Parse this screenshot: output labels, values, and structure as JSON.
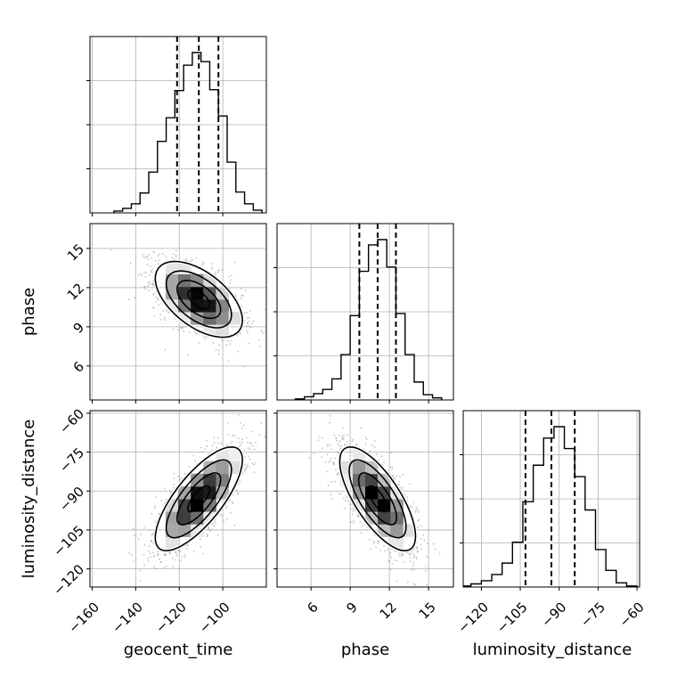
{
  "chart_data": {
    "type": "corner",
    "variables": [
      "geocent_time",
      "phase",
      "luminosity_distance"
    ],
    "axis_labels": {
      "geocent_time": "geocent_time",
      "phase": "phase",
      "luminosity_distance": "luminosity_distance"
    },
    "ranges": {
      "geocent_time": [
        -161,
        -80
      ],
      "phase": [
        3.4,
        16.9
      ],
      "luminosity_distance": [
        -127,
        -59
      ]
    },
    "tick_labels": {
      "geocent_time": [
        "−160",
        "−140",
        "−120",
        "−100"
      ],
      "phase": [
        "6",
        "9",
        "12",
        "15"
      ],
      "luminosity_distance": [
        "−120",
        "−105",
        "−90",
        "−75",
        "−60"
      ]
    },
    "tick_values": {
      "geocent_time": [
        -160,
        -140,
        -120,
        -100
      ],
      "phase": [
        6,
        9,
        12,
        15
      ],
      "luminosity_distance": [
        -120,
        -105,
        -90,
        -75,
        -60
      ]
    },
    "quantiles": {
      "geocent_time": [
        -121,
        -111,
        -102
      ],
      "phase": [
        9.7,
        11.1,
        12.5
      ],
      "luminosity_distance": [
        -103,
        -93,
        -84
      ]
    },
    "histograms": [
      {
        "name": "geocent_time",
        "edges": [
          -150,
          -146,
          -142,
          -138,
          -134,
          -130,
          -126,
          -122,
          -118,
          -114,
          -110,
          -106,
          -102,
          -98,
          -94,
          -90,
          -86,
          -82
        ],
        "counts": [
          2,
          5,
          10,
          22,
          45,
          79,
          105,
          135,
          163,
          177,
          167,
          136,
          107,
          56,
          23,
          10,
          3
        ]
      },
      {
        "name": "phase",
        "edges": [
          4.8,
          5.5,
          6.2,
          6.9,
          7.6,
          8.3,
          9.0,
          9.7,
          10.4,
          11.1,
          11.8,
          12.5,
          13.2,
          13.9,
          14.6,
          15.3,
          16.0
        ],
        "counts": [
          1,
          3,
          6,
          10,
          20,
          43,
          80,
          122,
          147,
          152,
          126,
          82,
          43,
          17,
          5,
          2
        ]
      },
      {
        "name": "luminosity_distance",
        "edges": [
          -128,
          -124,
          -120,
          -116,
          -112,
          -108,
          -104,
          -100,
          -96,
          -92,
          -88,
          -84,
          -80,
          -76,
          -72,
          -68,
          -64,
          -60
        ],
        "counts": [
          1,
          3,
          6,
          12,
          23,
          43,
          82,
          117,
          143,
          154,
          133,
          106,
          74,
          36,
          16,
          4,
          1
        ]
      }
    ],
    "joint_2d": [
      {
        "x": "geocent_time",
        "y": "phase",
        "mean": [
          -111,
          11.1
        ],
        "sd": [
          10,
          1.45
        ],
        "correlation": -0.55
      },
      {
        "x": "geocent_time",
        "y": "luminosity_distance",
        "mean": [
          -111,
          -93
        ],
        "sd": [
          10,
          10
        ],
        "correlation": 0.75
      },
      {
        "x": "phase",
        "y": "luminosity_distance",
        "mean": [
          11.1,
          -93
        ],
        "sd": [
          1.45,
          10
        ],
        "correlation": -0.72
      }
    ],
    "contour_levels_sigma": [
      0.5,
      1.0,
      1.5,
      2.0
    ],
    "grid": true
  }
}
